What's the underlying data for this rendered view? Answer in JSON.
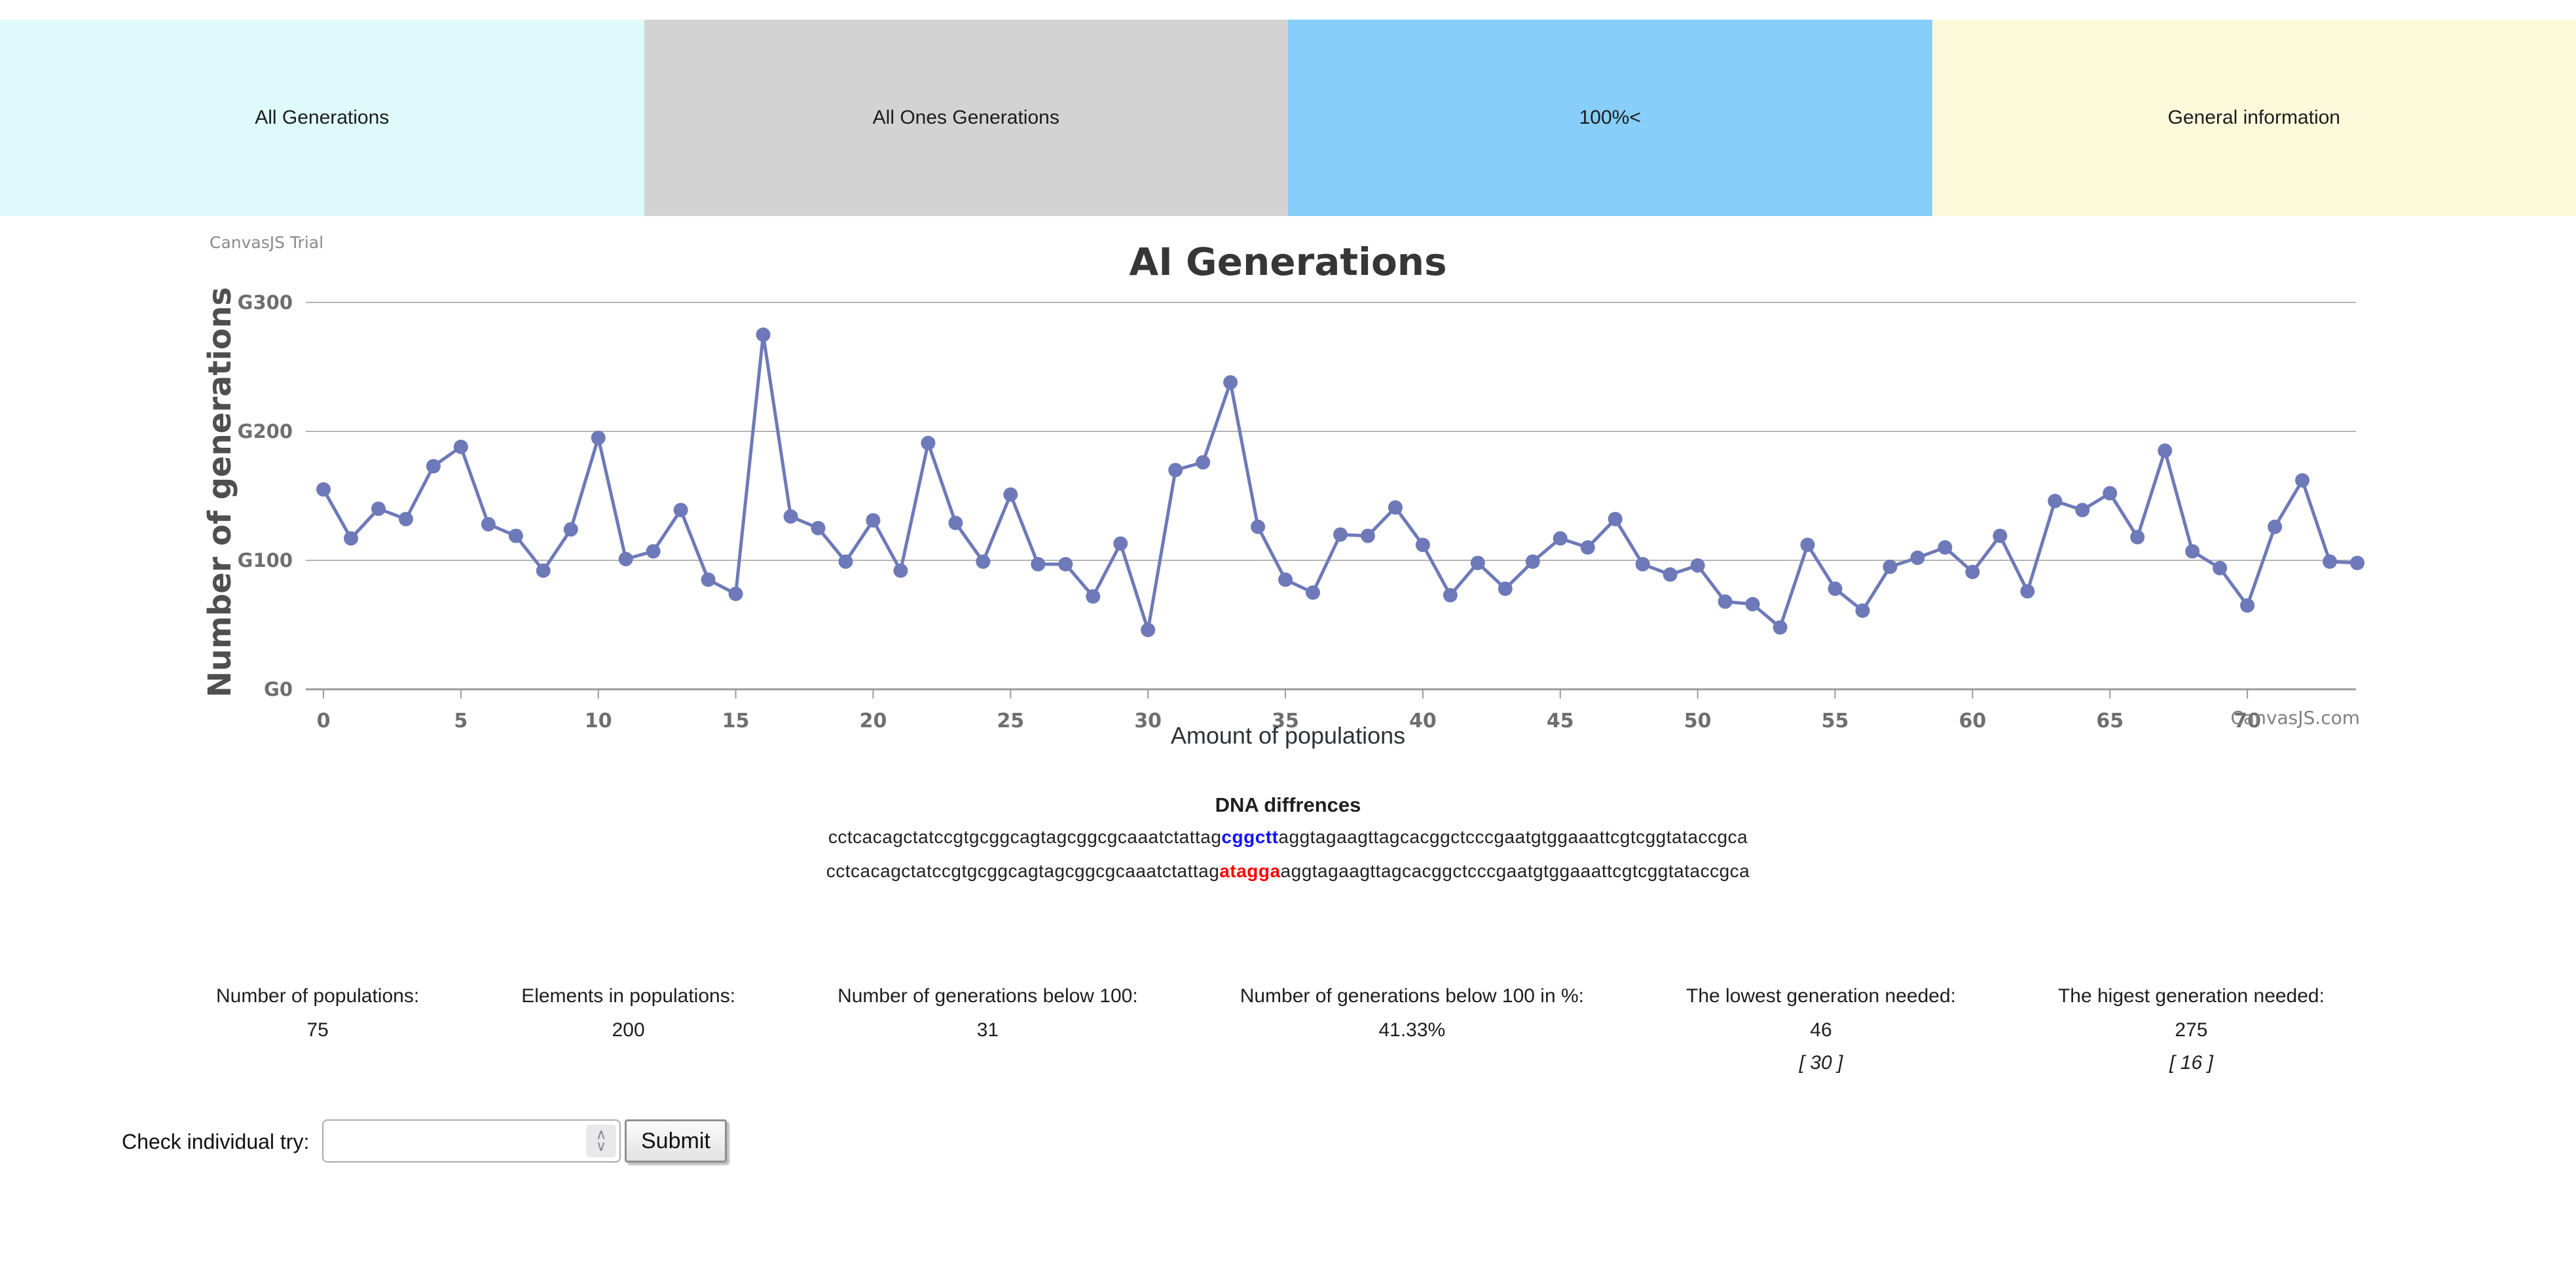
{
  "tabs": [
    {
      "label": "All Generations",
      "color": "#DEFAFA"
    },
    {
      "label": "All Ones Generations",
      "color": "#D3D3D3"
    },
    {
      "label": "100%<",
      "color": "#87CEFA"
    },
    {
      "label": "General information",
      "color": "#FBFBDC"
    }
  ],
  "chart": {
    "trial_watermark": "CanvasJS Trial",
    "site_watermark": "CanvasJS.com",
    "chart_data": {
      "type": "line",
      "title": "AI Generations",
      "xlabel": "Amount of populations",
      "ylabel": "Number of generations",
      "x_start": 0,
      "x_ticks": [
        0,
        5,
        10,
        15,
        20,
        25,
        30,
        35,
        40,
        45,
        50,
        55,
        60,
        65,
        70
      ],
      "ylim": [
        0,
        300
      ],
      "y_ticks": [
        0,
        100,
        200,
        300
      ],
      "y_tick_labels": [
        "G0",
        "G100",
        "G200",
        "G300"
      ],
      "grid": true,
      "legend_position": "none",
      "line_color": "#6D79B8",
      "values": [
        155,
        117,
        140,
        132,
        173,
        188,
        128,
        119,
        92,
        124,
        195,
        101,
        107,
        139,
        85,
        74,
        275,
        134,
        125,
        99,
        131,
        92,
        191,
        129,
        99,
        151,
        97,
        97,
        72,
        113,
        46,
        170,
        176,
        238,
        126,
        85,
        75,
        120,
        119,
        141,
        112,
        73,
        98,
        78,
        99,
        117,
        110,
        132,
        97,
        89,
        96,
        68,
        66,
        48,
        112,
        78,
        61,
        95,
        102,
        110,
        91,
        119,
        76,
        146,
        139,
        152,
        118,
        185,
        107,
        94,
        65,
        126,
        162,
        99,
        98
      ]
    }
  },
  "dna": {
    "heading": "DNA diffrences",
    "prefix": "cctcacagctatccgtgcggcagtagcggcgcaaatctattag",
    "seq1_diff": "cggctt",
    "seq2_diff": "atagga",
    "suffix": "aggtagaagttagcacggctcccgaatgtggaaattcgtcggtataccgca",
    "diff1_color": "#1010FF",
    "diff2_color": "#FF0000"
  },
  "stats": [
    {
      "label": "Number of populations:",
      "value": "75"
    },
    {
      "label": "Elements in populations:",
      "value": "200"
    },
    {
      "label": "Number of generations below 100:",
      "value": "31"
    },
    {
      "label": "Number of generations below 100 in %:",
      "value": "41.33%"
    },
    {
      "label": "The lowest generation needed:",
      "value": "46",
      "bracket": "[ 30 ]"
    },
    {
      "label": "The higest generation needed:",
      "value": "275",
      "bracket": "[ 16 ]"
    }
  ],
  "form": {
    "label": "Check individual try:",
    "select_value": "",
    "submit_label": "Submit"
  }
}
